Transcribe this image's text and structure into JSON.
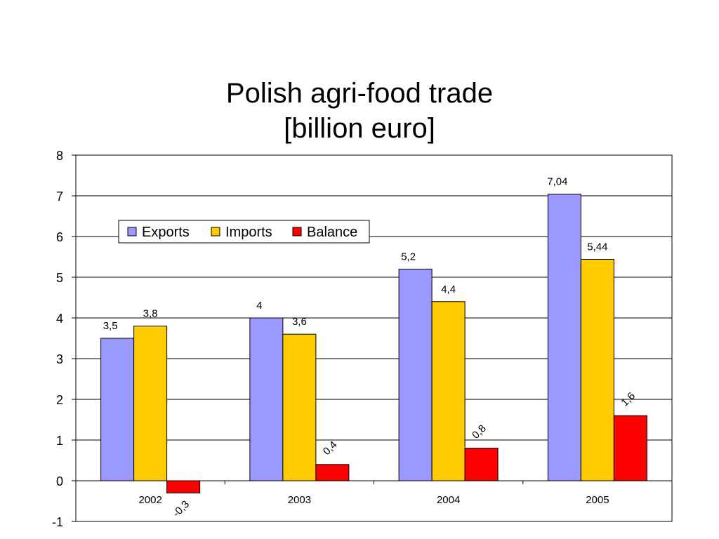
{
  "chart_data": {
    "type": "bar",
    "title": [
      "Polish agri-food trade",
      "[billion euro]"
    ],
    "categories": [
      "2002",
      "2003",
      "2004",
      "2005"
    ],
    "series": [
      {
        "name": "Exports",
        "color": "#9999ff",
        "values": [
          3.5,
          4,
          5.2,
          7.04
        ],
        "labels": [
          "3,5",
          "4",
          "5,2",
          "7,04"
        ]
      },
      {
        "name": "Imports",
        "color": "#ffcc00",
        "values": [
          3.8,
          3.6,
          4.4,
          5.44
        ],
        "labels": [
          "3,8",
          "3,6",
          "4,4",
          "5,44"
        ]
      },
      {
        "name": "Balance",
        "color": "#ff0000",
        "values": [
          -0.3,
          0.4,
          0.8,
          1.6
        ],
        "labels": [
          "-0,3",
          "0,4",
          "0,8",
          "1,6"
        ]
      }
    ],
    "ylim": [
      -1,
      8
    ],
    "yticks": [
      "-1",
      "0",
      "1",
      "2",
      "3",
      "4",
      "5",
      "6",
      "7",
      "8"
    ],
    "grid": true,
    "legend_position": "top-left",
    "xlabel": "",
    "ylabel": ""
  }
}
